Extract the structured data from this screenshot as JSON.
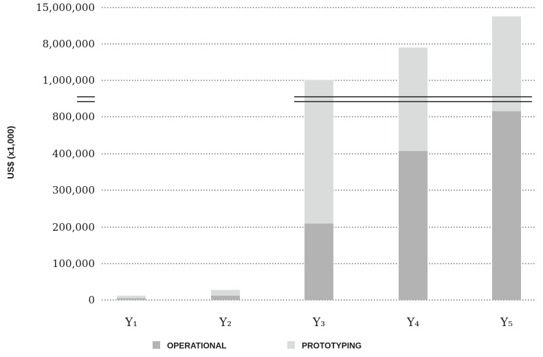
{
  "chart_data": {
    "type": "bar",
    "stacked": true,
    "ylabel": "US$ (x1,000)",
    "categories": [
      "Y1",
      "Y2",
      "Y3",
      "Y4",
      "Y5"
    ],
    "category_labels": [
      "Y₁",
      "Y₂",
      "Y₃",
      "Y₄",
      "Y₅"
    ],
    "y_ticks": [
      0,
      100000,
      200000,
      300000,
      400000,
      800000,
      1000000,
      8000000,
      15000000
    ],
    "y_tick_labels": [
      "0",
      "100,000",
      "200,000",
      "300,000",
      "400,000",
      "800,000",
      "1,000,000",
      "8,000,000",
      "15,000,000"
    ],
    "axis_break": "between 800,000 and 1,000,000",
    "series": [
      {
        "name": "OPERATIONAL",
        "color": "#b3b3b3",
        "totals": [
          5000,
          12000,
          210000,
          430000,
          830000
        ]
      },
      {
        "name": "PROTOTYPING",
        "color": "#dadbdb",
        "totals": [
          12000,
          28000,
          1050000,
          7300000,
          13300000
        ]
      }
    ],
    "legend_position": "bottom",
    "grid": true
  }
}
